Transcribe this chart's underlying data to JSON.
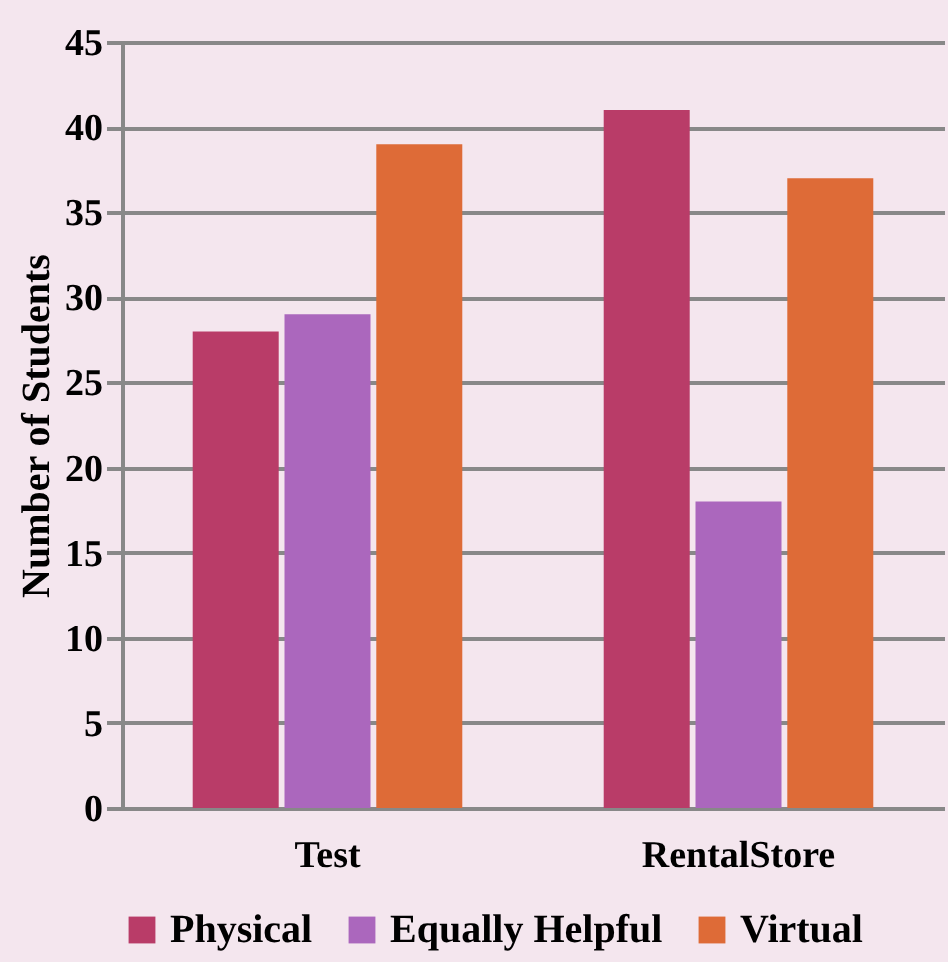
{
  "chart_data": {
    "type": "bar",
    "ylabel": "Number of Students",
    "categories": [
      "Test",
      "RentalStore"
    ],
    "series": [
      {
        "name": "Physical",
        "color": "#b93c68",
        "values": [
          28,
          41
        ]
      },
      {
        "name": "Equally Helpful",
        "color": "#ab67bd",
        "values": [
          29,
          18
        ]
      },
      {
        "name": "Virtual",
        "color": "#de6b37",
        "values": [
          39,
          37
        ]
      }
    ],
    "ylim": [
      0,
      45
    ],
    "yticks": [
      0,
      5,
      10,
      15,
      20,
      25,
      30,
      35,
      40,
      45
    ],
    "grid": "y",
    "legend": "bottom"
  }
}
